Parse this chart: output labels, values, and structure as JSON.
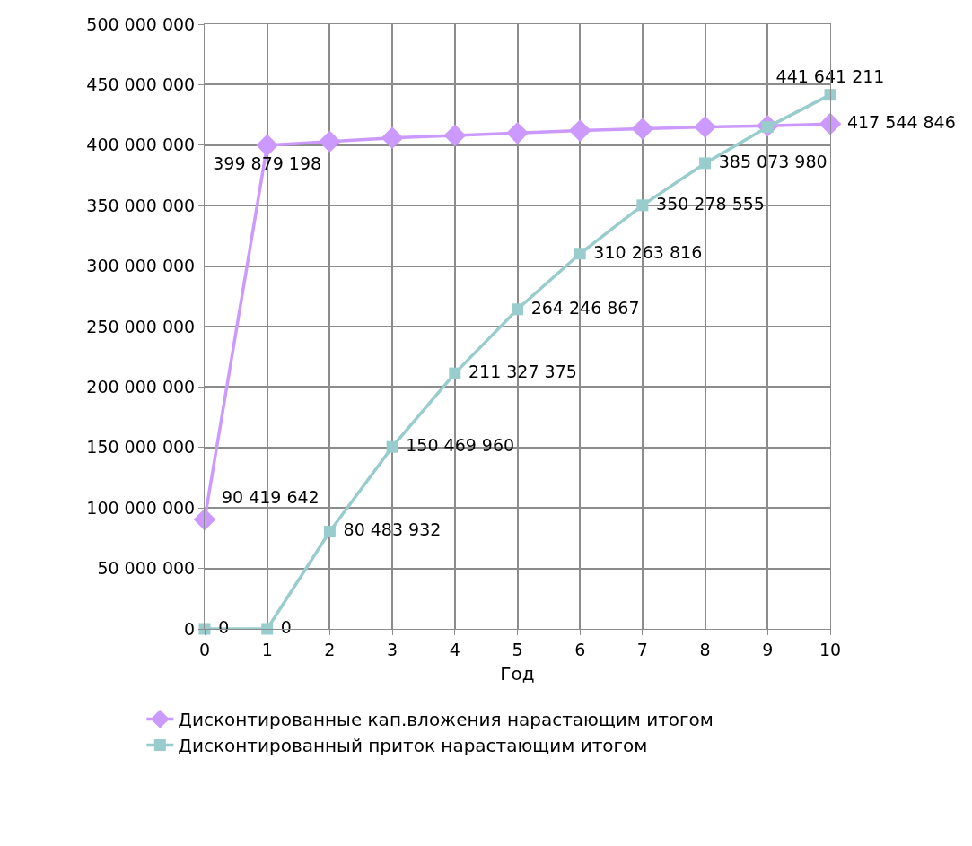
{
  "chart_data": {
    "type": "line",
    "xlabel": "Год",
    "x": [
      0,
      1,
      2,
      3,
      4,
      5,
      6,
      7,
      8,
      9,
      10
    ],
    "xlim": [
      0,
      10
    ],
    "xticks": [
      0,
      1,
      2,
      3,
      4,
      5,
      6,
      7,
      8,
      9,
      10
    ],
    "ylim": [
      0,
      500000000
    ],
    "yticks": [
      {
        "value": 0,
        "label": "0"
      },
      {
        "value": 50000000,
        "label": "50 000 000"
      },
      {
        "value": 100000000,
        "label": "100 000 000"
      },
      {
        "value": 150000000,
        "label": "150 000 000"
      },
      {
        "value": 200000000,
        "label": "200 000 000"
      },
      {
        "value": 250000000,
        "label": "250 000 000"
      },
      {
        "value": 300000000,
        "label": "300 000 000"
      },
      {
        "value": 350000000,
        "label": "350 000 000"
      },
      {
        "value": 400000000,
        "label": "400 000 000"
      },
      {
        "value": 450000000,
        "label": "450 000 000"
      },
      {
        "value": 500000000,
        "label": "500 000 000"
      }
    ],
    "grid": true,
    "legend": "bottom",
    "line_style": "solid",
    "series": [
      {
        "name": "Дисконтированные кап.вложения нарастающим итогом",
        "color": "#cc99ff",
        "marker": "diamond",
        "values": [
          90419642,
          399879198,
          403000000,
          406000000,
          408000000,
          410000000,
          412000000,
          413500000,
          415000000,
          416000000,
          417544846
        ],
        "value_labels": [
          "90 419 642",
          "399 879 198",
          null,
          null,
          null,
          null,
          null,
          null,
          null,
          null,
          "417 544 846"
        ]
      },
      {
        "name": "Дисконтированный приток нарастающим итогом",
        "color": "#99cccc",
        "marker": "square",
        "values": [
          0,
          0,
          80483932,
          150469960,
          211327375,
          264246867,
          310263816,
          350278555,
          385073980,
          415000000,
          441641211
        ],
        "value_labels": [
          "0",
          "0",
          "80 483 932",
          "150 469 960",
          "211 327 375",
          "264 246 867",
          "310 263 816",
          "350 278 555",
          "385 073 980",
          null,
          "441 641 211"
        ]
      }
    ]
  }
}
